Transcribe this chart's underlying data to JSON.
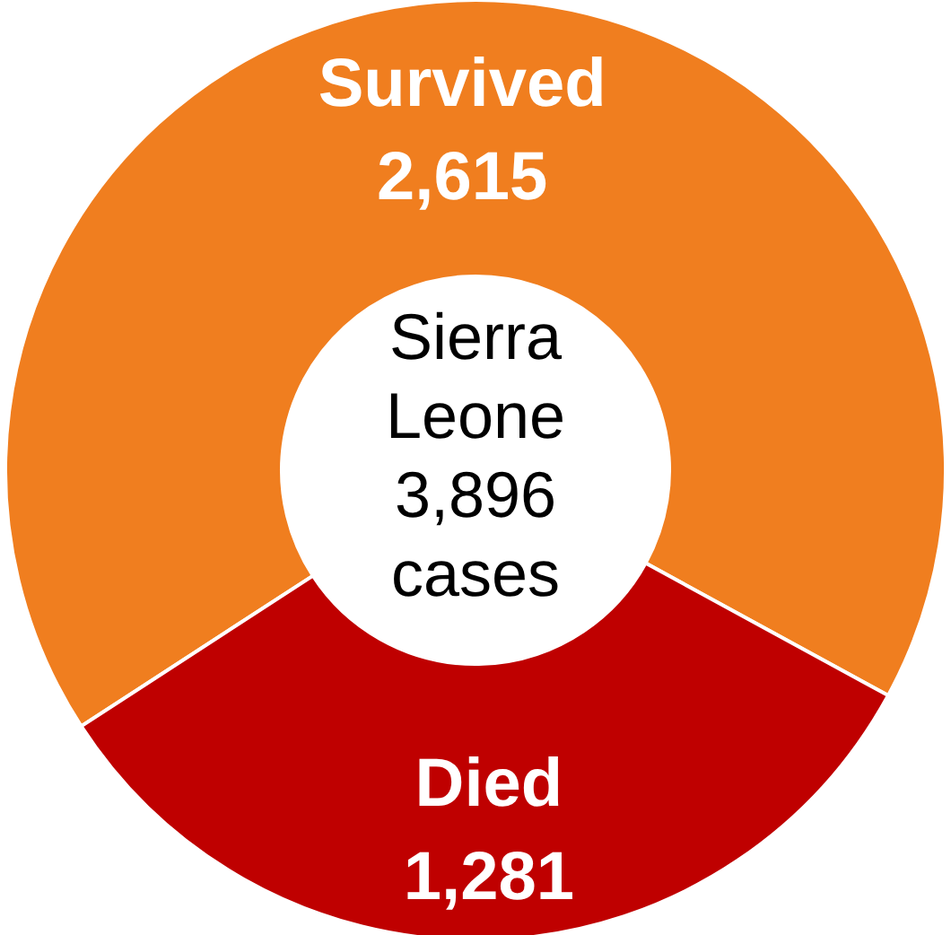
{
  "chart_data": {
    "type": "donut",
    "title": "Sierra Leone 3,896 cases",
    "categories": [
      "Survived",
      "Died"
    ],
    "values": [
      2615,
      1281
    ],
    "value_labels": [
      "2,615",
      "1,281"
    ],
    "colors": [
      "#f07e1f",
      "#bf0000"
    ]
  }
}
